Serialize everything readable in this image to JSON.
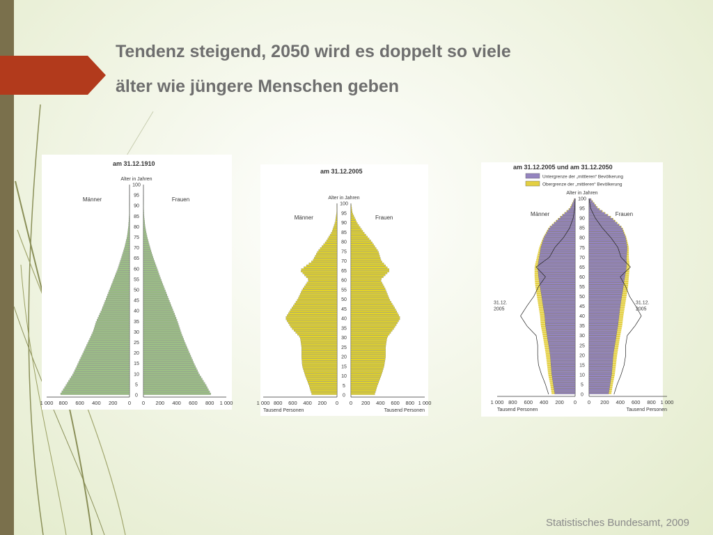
{
  "slide": {
    "title_line1": "Tendenz steigend, 2050 wird es doppelt so viele",
    "title_line2": "älter wie jüngere Menschen geben",
    "source": "Statistisches Bundesamt, 2009"
  },
  "colors": {
    "left_bar": "#7a704c",
    "arrow": "#b23a1c",
    "pyramid_1910": "#9cbf86",
    "pyramid_2005": "#e1d22a",
    "lower_bound": "#9484bf",
    "upper_bound": "#e3cf42",
    "title_text": "#6e6e6e"
  },
  "chart_data": [
    {
      "type": "bar",
      "orientation": "horizontal-population-pyramid",
      "title": "am 31.12.1910",
      "age_axis_label": "Alter in Jahren",
      "left_label": "Männer",
      "right_label": "Frauen",
      "unit_label": "",
      "age_ticks": [
        0,
        5,
        10,
        15,
        20,
        25,
        30,
        35,
        40,
        45,
        50,
        55,
        60,
        65,
        70,
        75,
        80,
        85,
        90,
        95,
        100
      ],
      "x_ticks": [
        "1 000",
        "800",
        "600",
        "400",
        "200",
        "0"
      ],
      "x_ticks_right": [
        "0",
        "200",
        "400",
        "600",
        "800",
        "1 000"
      ],
      "xlim": [
        0,
        1000
      ],
      "ages": [
        0,
        5,
        10,
        15,
        20,
        25,
        30,
        35,
        40,
        45,
        50,
        55,
        60,
        65,
        70,
        75,
        80,
        85,
        90,
        95,
        100
      ],
      "male": [
        840,
        760,
        680,
        620,
        560,
        500,
        440,
        400,
        340,
        290,
        240,
        190,
        140,
        100,
        60,
        30,
        12,
        4,
        1,
        0,
        0
      ],
      "female": [
        820,
        750,
        670,
        610,
        555,
        500,
        450,
        410,
        360,
        310,
        260,
        210,
        165,
        120,
        80,
        45,
        20,
        7,
        2,
        0,
        0
      ],
      "series": [
        {
          "name": "Männer"
        },
        {
          "name": "Frauen"
        }
      ]
    },
    {
      "type": "bar",
      "orientation": "horizontal-population-pyramid",
      "title": "am 31.12.2005",
      "age_axis_label": "Alter in Jahren",
      "left_label": "Männer",
      "right_label": "Frauen",
      "unit_label": "Tausend Personen",
      "unit_label_right": "Tausend Personen",
      "age_ticks": [
        0,
        5,
        10,
        15,
        20,
        25,
        30,
        35,
        40,
        45,
        50,
        55,
        60,
        65,
        70,
        75,
        80,
        85,
        90,
        95,
        100
      ],
      "x_ticks": [
        "1 000",
        "800",
        "600",
        "400",
        "200",
        "0"
      ],
      "x_ticks_right": [
        "0",
        "200",
        "400",
        "600",
        "800",
        "1 000"
      ],
      "xlim": [
        0,
        1000
      ],
      "ages": [
        0,
        5,
        10,
        15,
        20,
        25,
        30,
        35,
        40,
        45,
        50,
        55,
        60,
        65,
        70,
        75,
        80,
        85,
        90,
        95,
        100
      ],
      "male": [
        340,
        380,
        430,
        470,
        480,
        480,
        500,
        620,
        700,
        620,
        530,
        470,
        380,
        500,
        330,
        260,
        150,
        70,
        25,
        5,
        0
      ],
      "female": [
        320,
        360,
        410,
        450,
        470,
        470,
        490,
        590,
        670,
        600,
        520,
        470,
        400,
        530,
        410,
        370,
        280,
        170,
        80,
        20,
        0
      ],
      "series": [
        {
          "name": "Männer"
        },
        {
          "name": "Frauen"
        }
      ]
    },
    {
      "type": "bar",
      "orientation": "horizontal-population-pyramid",
      "title": "am 31.12.2005 und am 31.12.2050",
      "age_axis_label": "Alter in Jahren",
      "left_label": "Männer",
      "right_label": "Frauen",
      "unit_label": "Tausend Personen",
      "unit_label_right": "Tausend Personen",
      "outline_label": "31.12. 2005",
      "legend": [
        {
          "name": "Untergrenze der „mittleren“ Bevölkerung",
          "color": "#9484bf"
        },
        {
          "name": "Obergrenze der „mittleren“ Bevölkerung",
          "color": "#e3cf42"
        }
      ],
      "age_ticks": [
        0,
        5,
        10,
        15,
        20,
        25,
        30,
        35,
        40,
        45,
        50,
        55,
        60,
        65,
        70,
        75,
        80,
        85,
        90,
        95,
        100
      ],
      "x_ticks": [
        "1 000",
        "800",
        "600",
        "400",
        "200",
        "0"
      ],
      "x_ticks_right": [
        "0",
        "200",
        "400",
        "600",
        "800",
        "1 000"
      ],
      "xlim": [
        0,
        1000
      ],
      "ages": [
        0,
        5,
        10,
        15,
        20,
        25,
        30,
        35,
        40,
        45,
        50,
        55,
        60,
        65,
        70,
        75,
        80,
        85,
        90,
        95,
        100
      ],
      "male_lower": [
        260,
        280,
        300,
        310,
        320,
        340,
        360,
        380,
        390,
        410,
        430,
        450,
        470,
        480,
        460,
        440,
        400,
        330,
        200,
        60,
        5
      ],
      "male_upper": [
        300,
        320,
        345,
        360,
        375,
        395,
        415,
        440,
        450,
        470,
        490,
        510,
        520,
        520,
        490,
        460,
        410,
        340,
        210,
        70,
        8
      ],
      "female_lower": [
        250,
        270,
        290,
        300,
        310,
        330,
        350,
        370,
        385,
        400,
        420,
        440,
        460,
        480,
        480,
        490,
        470,
        420,
        290,
        110,
        15
      ],
      "female_upper": [
        285,
        305,
        330,
        345,
        360,
        380,
        400,
        425,
        440,
        460,
        480,
        500,
        510,
        520,
        510,
        510,
        480,
        430,
        300,
        120,
        20
      ],
      "male_2005": [
        340,
        380,
        430,
        470,
        480,
        480,
        500,
        620,
        700,
        620,
        530,
        470,
        380,
        500,
        330,
        260,
        150,
        70,
        25,
        5,
        0
      ],
      "female_2005": [
        320,
        360,
        410,
        450,
        470,
        470,
        490,
        590,
        670,
        600,
        520,
        470,
        400,
        530,
        410,
        370,
        280,
        170,
        80,
        20,
        0
      ]
    }
  ]
}
